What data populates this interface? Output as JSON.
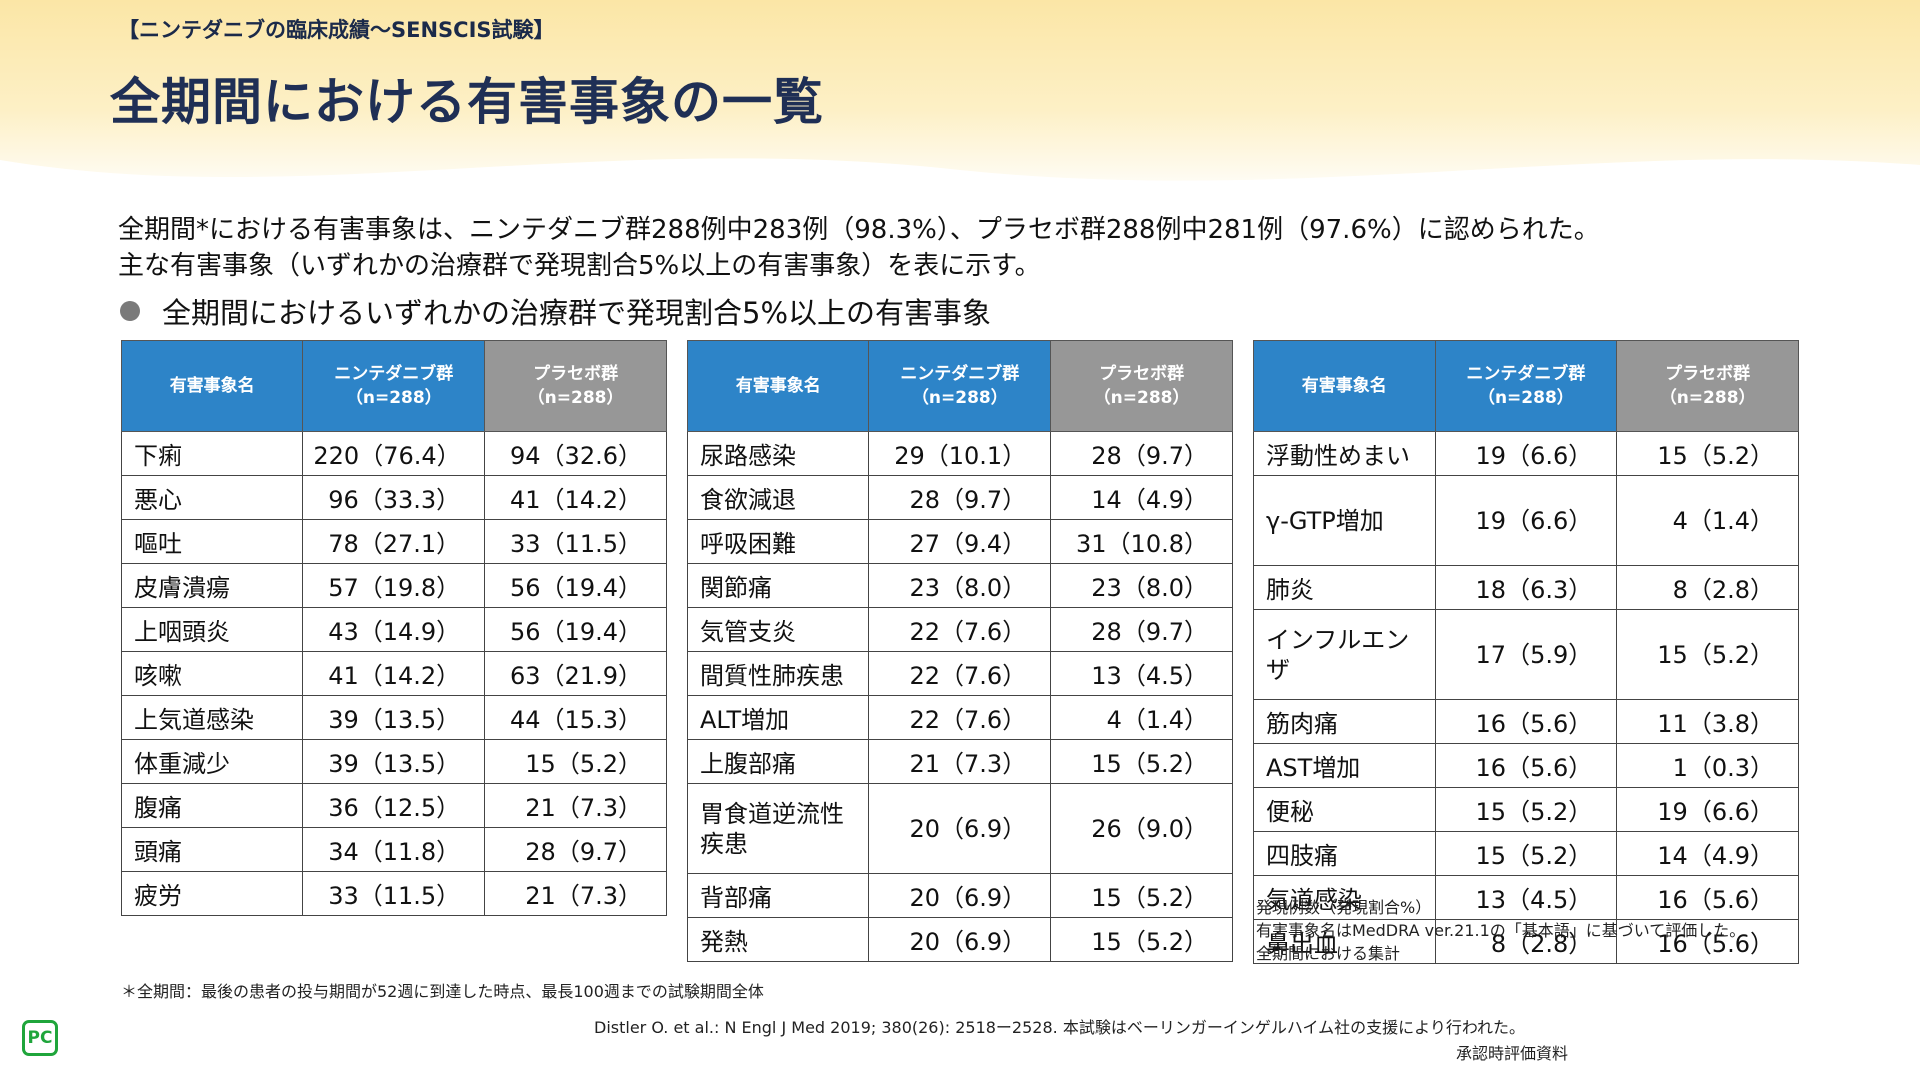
{
  "header": {
    "tagline": "【ニンテダニブの臨床成績〜SENSCIS試験】",
    "title": "全期間における有害事象の一覧"
  },
  "intro": {
    "line1": "全期間*における有害事象は、ニンテダニブ群288例中283例（98.3%）、プラセボ群288例中281例（97.6%）に認められた。",
    "line2": "主な有害事象（いずれかの治療群で発現割合5%以上の有害事象）を表に示す。"
  },
  "section_title": "全期間におけるいずれかの治療群で発現割合5%以上の有害事象",
  "table_header": {
    "name": "有害事象名",
    "nintedanib": "ニンテダニブ群",
    "nintedanib_n": "（n=288）",
    "placebo": "プラセボ群",
    "placebo_n": "（n=288）"
  },
  "tables": [
    {
      "rows": [
        {
          "name": "下痢",
          "nin": "220（76.4）",
          "pla": "94（32.6）"
        },
        {
          "name": "悪心",
          "nin": "96（33.3）",
          "pla": "41（14.2）"
        },
        {
          "name": "嘔吐",
          "nin": "78（27.1）",
          "pla": "33（11.5）"
        },
        {
          "name": "皮膚潰瘍",
          "nin": "57（19.8）",
          "pla": "56（19.4）"
        },
        {
          "name": "上咽頭炎",
          "nin": "43（14.9）",
          "pla": "56（19.4）"
        },
        {
          "name": "咳嗽",
          "nin": "41（14.2）",
          "pla": "63（21.9）"
        },
        {
          "name": "上気道感染",
          "nin": "39（13.5）",
          "pla": "44（15.3）"
        },
        {
          "name": "体重減少",
          "nin": "39（13.5）",
          "pla": "15（5.2）"
        },
        {
          "name": "腹痛",
          "nin": "36（12.5）",
          "pla": "21（7.3）"
        },
        {
          "name": "頭痛",
          "nin": "34（11.8）",
          "pla": "28（9.7）"
        },
        {
          "name": "疲労",
          "nin": "33（11.5）",
          "pla": "21（7.3）"
        }
      ]
    },
    {
      "rows": [
        {
          "name": "尿路感染",
          "nin": "29（10.1）",
          "pla": "28（9.7）"
        },
        {
          "name": "食欲減退",
          "nin": "28（9.7）",
          "pla": "14（4.9）"
        },
        {
          "name": "呼吸困難",
          "nin": "27（9.4）",
          "pla": "31（10.8）"
        },
        {
          "name": "関節痛",
          "nin": "23（8.0）",
          "pla": "23（8.0）"
        },
        {
          "name": "気管支炎",
          "nin": "22（7.6）",
          "pla": "28（9.7）"
        },
        {
          "name": "間質性肺疾患",
          "nin": "22（7.6）",
          "pla": "13（4.5）"
        },
        {
          "name": "ALT増加",
          "nin": "22（7.6）",
          "pla": "4（1.4）"
        },
        {
          "name": "上腹部痛",
          "nin": "21（7.3）",
          "pla": "15（5.2）"
        },
        {
          "name": "胃食道逆流性疾患",
          "nin": "20（6.9）",
          "pla": "26（9.0）"
        },
        {
          "name": "背部痛",
          "nin": "20（6.9）",
          "pla": "15（5.2）"
        },
        {
          "name": "発熱",
          "nin": "20（6.9）",
          "pla": "15（5.2）"
        }
      ]
    },
    {
      "rows": [
        {
          "name": "浮動性めまい",
          "nin": "19（6.6）",
          "pla": "15（5.2）"
        },
        {
          "name": "γ-GTP増加",
          "nin": "19（6.6）",
          "pla": "4（1.4）"
        },
        {
          "name": "肺炎",
          "nin": "18（6.3）",
          "pla": "8（2.8）"
        },
        {
          "name": "インフルエンザ",
          "nin": "17（5.9）",
          "pla": "15（5.2）"
        },
        {
          "name": "筋肉痛",
          "nin": "16（5.6）",
          "pla": "11（3.8）"
        },
        {
          "name": "AST増加",
          "nin": "16（5.6）",
          "pla": "1（0.3）"
        },
        {
          "name": "便秘",
          "nin": "15（5.2）",
          "pla": "19（6.6）"
        },
        {
          "name": "四肢痛",
          "nin": "15（5.2）",
          "pla": "14（4.9）"
        },
        {
          "name": "気道感染",
          "nin": "13（4.5）",
          "pla": "16（5.6）"
        },
        {
          "name": "鼻出血",
          "nin": "8（2.8）",
          "pla": "16（5.6）"
        }
      ]
    }
  ],
  "notes": {
    "line1": "発現例数（発現割合%）",
    "line2": "有害事象名はMedDRA ver.21.1の「基本語」に基づいて評価した。",
    "line3": "全期間における集計"
  },
  "footnote": "＊全期間：最後の患者の投与期間が52週に到達した時点、最長100週までの試験期間全体",
  "reference": "Distler O. et al.: N Engl J Med 2019; 380(26): 2518ー2528. 本試験はベーリンガーインゲルハイム社の支援により行われた。",
  "approval": "承認時評価資料",
  "logo_text": "PC"
}
